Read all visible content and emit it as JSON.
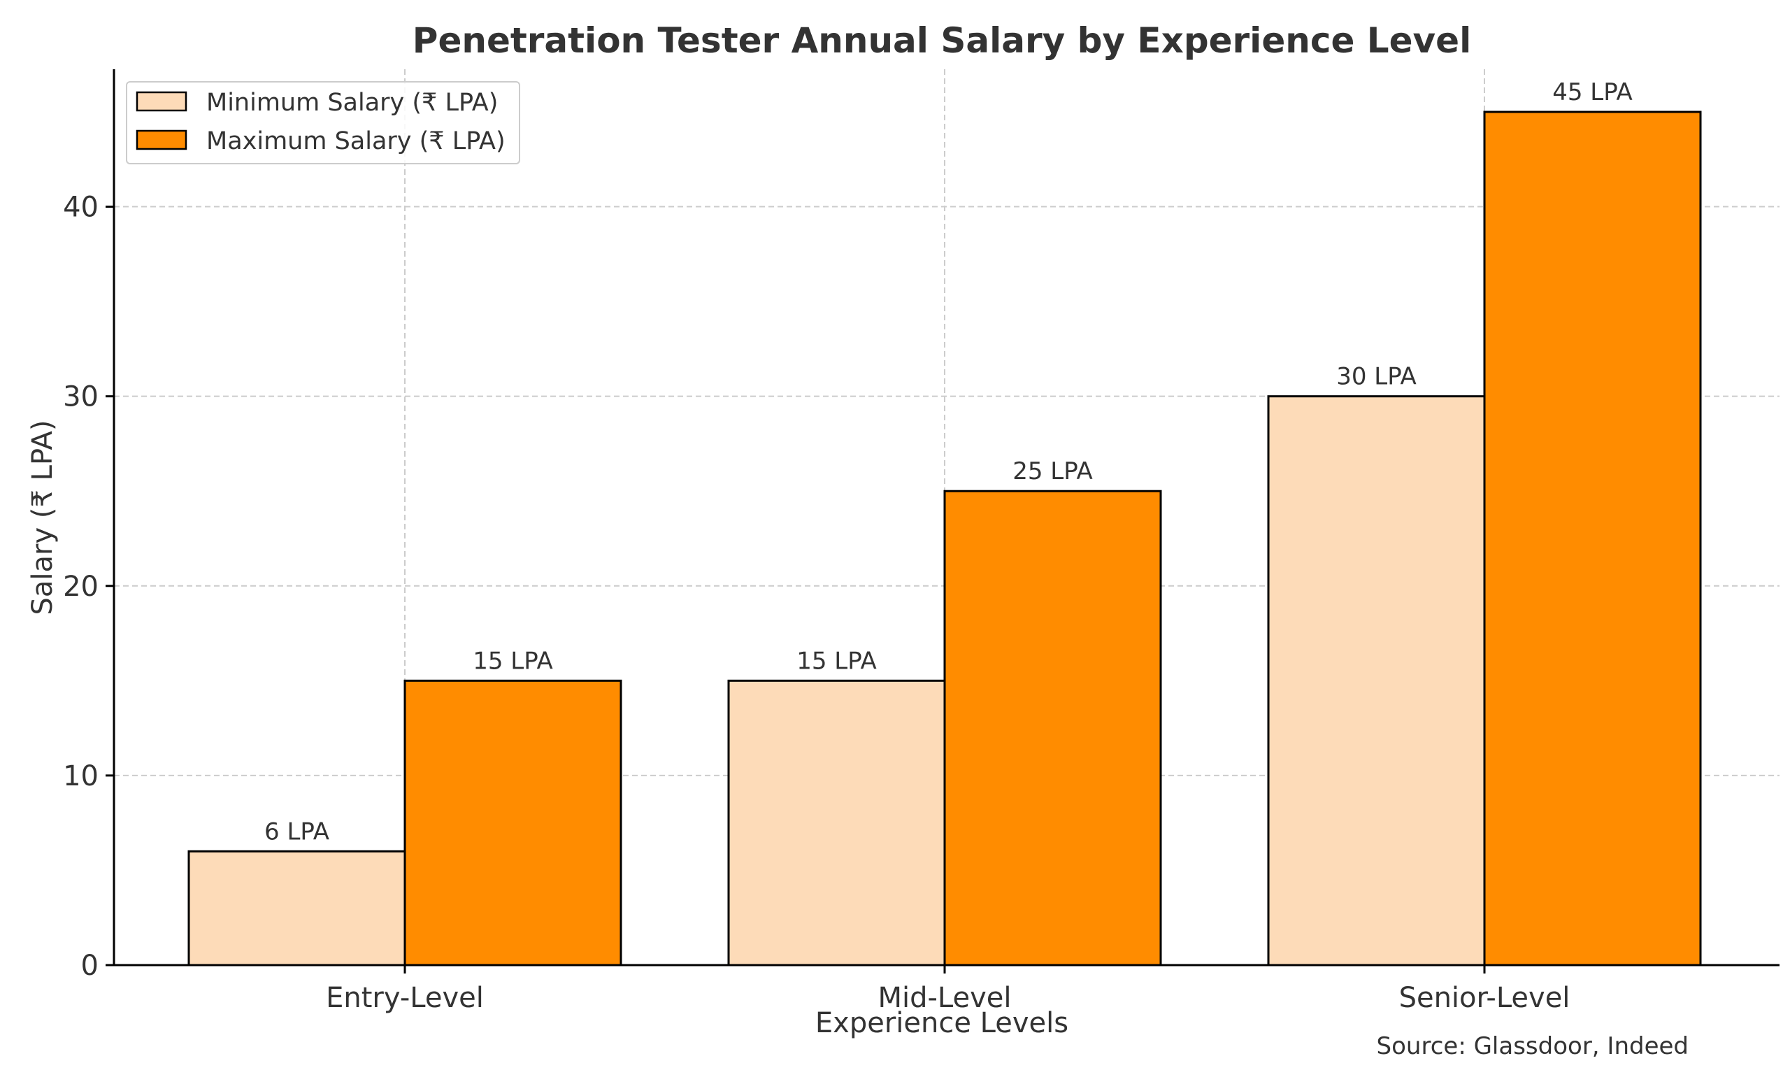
{
  "chart_data": {
    "type": "bar",
    "title": "Penetration Tester Annual Salary by Experience Level",
    "xlabel": "Experience Levels",
    "ylabel": "Salary (₹ LPA)",
    "categories": [
      "Entry-Level",
      "Mid-Level",
      "Senior-Level"
    ],
    "series": [
      {
        "name": "Minimum Salary (₹ LPA)",
        "values": [
          6,
          15,
          30
        ],
        "labels": [
          "6 LPA",
          "15 LPA",
          "30 LPA"
        ],
        "color": "#FDDBB8"
      },
      {
        "name": "Maximum Salary (₹ LPA)",
        "values": [
          15,
          25,
          45
        ],
        "labels": [
          "15 LPA",
          "25 LPA",
          "45 LPA"
        ],
        "color": "#FF8C00"
      }
    ],
    "ylim": [
      0,
      47.25
    ],
    "yticks": [
      0,
      10,
      20,
      30,
      40
    ],
    "ytick_labels": [
      "0",
      "10",
      "20",
      "30",
      "40"
    ],
    "grid": true,
    "legend_position": "top-left",
    "source_note": "Source: Glassdoor, Indeed"
  },
  "colors": {
    "axis": "#000000",
    "text": "#333333",
    "grid": "#cccccc",
    "bar_edge": "#000000"
  }
}
